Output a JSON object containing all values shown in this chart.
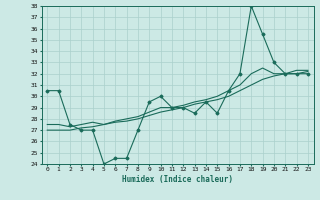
{
  "xlabel": "Humidex (Indice chaleur)",
  "ylabel": "",
  "x_values": [
    0,
    1,
    2,
    3,
    4,
    5,
    6,
    7,
    8,
    9,
    10,
    11,
    12,
    13,
    14,
    15,
    16,
    17,
    18,
    19,
    20,
    21,
    22,
    23
  ],
  "y_main": [
    30.5,
    30.5,
    27.5,
    27.0,
    27.0,
    24.0,
    24.5,
    24.5,
    27.0,
    29.5,
    30.0,
    29.0,
    29.0,
    28.5,
    29.5,
    28.5,
    30.5,
    32.0,
    38.0,
    35.5,
    33.0,
    32.0,
    32.0,
    32.0
  ],
  "y_line2": [
    27.5,
    27.5,
    27.3,
    27.5,
    27.7,
    27.5,
    27.8,
    28.0,
    28.2,
    28.6,
    29.0,
    29.0,
    29.2,
    29.5,
    29.7,
    30.0,
    30.5,
    31.0,
    32.0,
    32.5,
    32.0,
    32.0,
    32.3,
    32.3
  ],
  "y_line3": [
    27.0,
    27.0,
    27.0,
    27.2,
    27.3,
    27.5,
    27.7,
    27.8,
    28.0,
    28.3,
    28.6,
    28.8,
    29.0,
    29.3,
    29.5,
    29.7,
    30.0,
    30.5,
    31.0,
    31.5,
    31.8,
    32.0,
    32.0,
    32.2
  ],
  "ylim": [
    24,
    38
  ],
  "yticks": [
    24,
    25,
    26,
    27,
    28,
    29,
    30,
    31,
    32,
    33,
    34,
    35,
    36,
    37,
    38
  ],
  "line_color": "#1a6b5a",
  "bg_color": "#cce9e5",
  "grid_color": "#aad0cc",
  "marker": "D",
  "marker_size": 1.5,
  "linewidth": 0.8,
  "tick_fontsize": 4.5,
  "xlabel_fontsize": 5.5
}
